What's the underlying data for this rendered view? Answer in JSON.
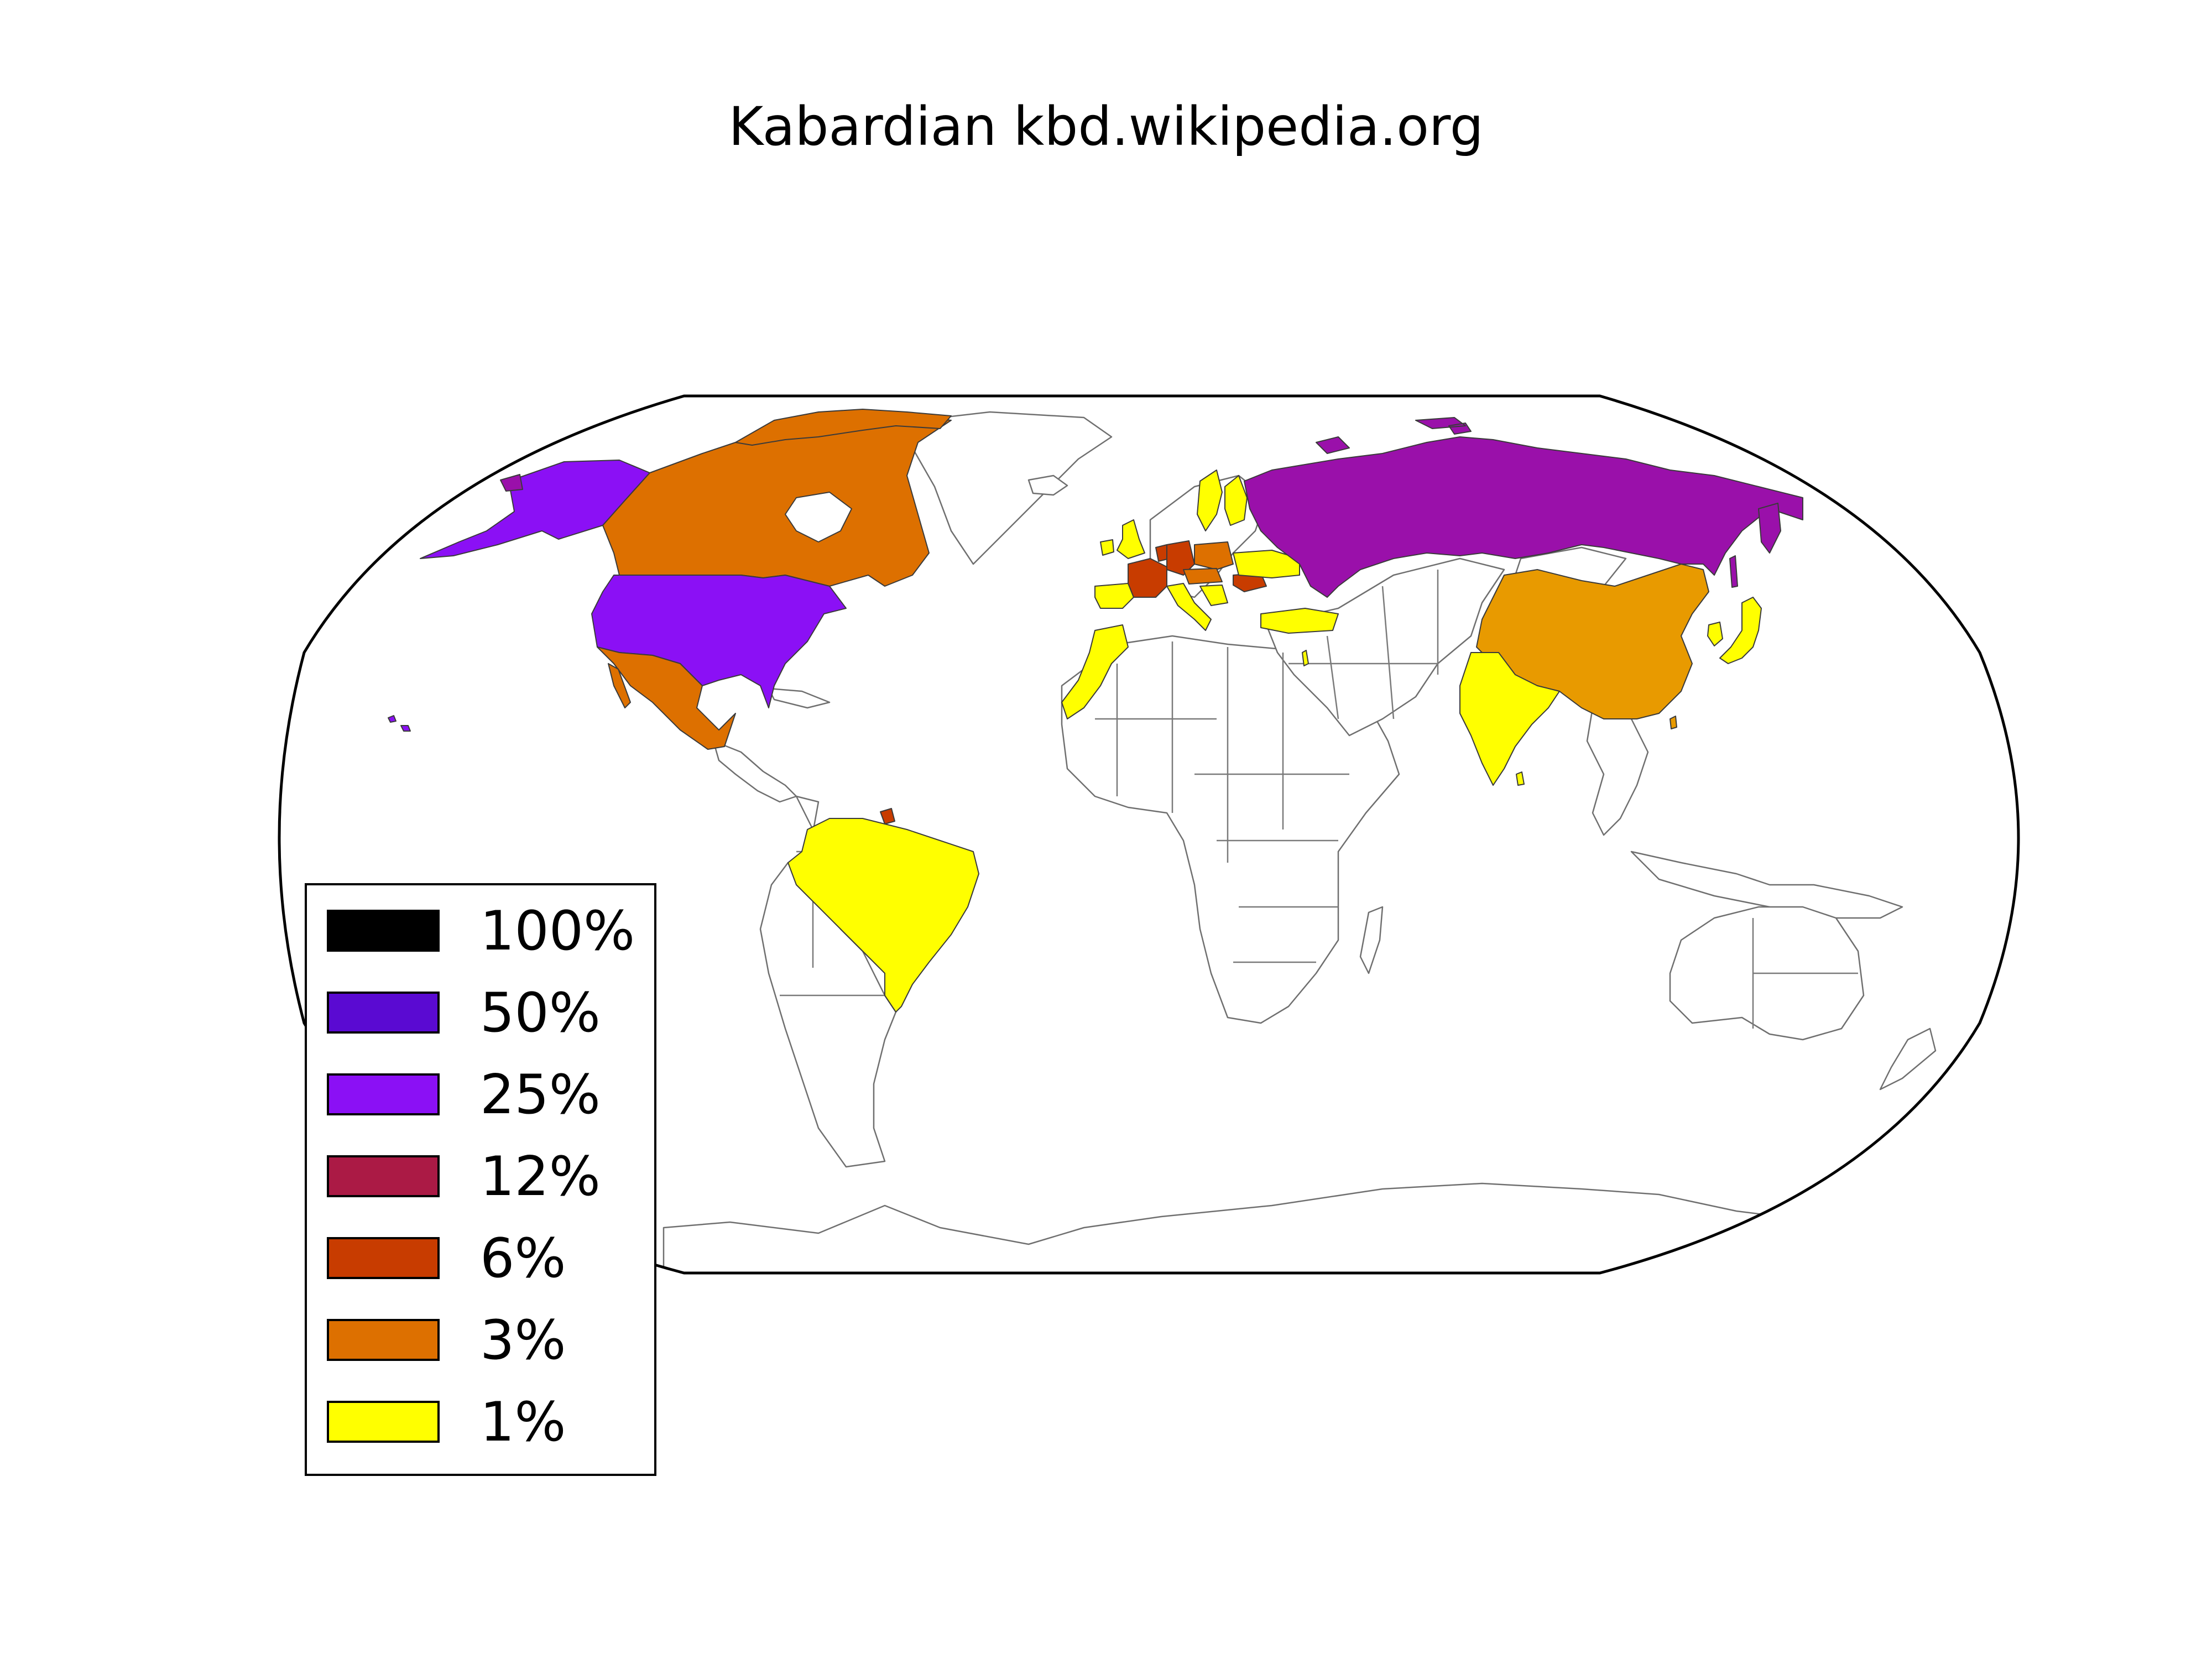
{
  "title": "Kabardian kbd.wikipedia.org",
  "colors": {
    "pct100": "#000000",
    "pct50": "#5a0ad2",
    "pct25": "#8b10f5",
    "pct12": "#ab1a45",
    "pct6": "#c83c00",
    "pct3": "#dd7000",
    "pct1": "#ffff00",
    "russia": "#9a10aa",
    "china": "#e89a00",
    "none": "#ffffff"
  },
  "legend": {
    "items": [
      {
        "label": "100%",
        "color": "#000000"
      },
      {
        "label": "50%",
        "color": "#5a0ad2"
      },
      {
        "label": "25%",
        "color": "#8b10f5"
      },
      {
        "label": "12%",
        "color": "#ab1a45"
      },
      {
        "label": "6%",
        "color": "#c83c00"
      },
      {
        "label": "3%",
        "color": "#dd7000"
      },
      {
        "label": "1%",
        "color": "#ffff00"
      }
    ]
  }
}
